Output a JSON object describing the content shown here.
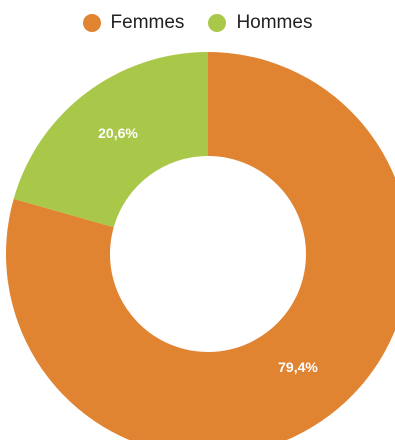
{
  "chart_data": {
    "type": "pie",
    "donut": true,
    "legend_position": "top-center",
    "categories": [
      "Femmes",
      "Hommes"
    ],
    "values": [
      79.4,
      20.6
    ],
    "value_labels": [
      "79,4%",
      "20,6%"
    ],
    "colors": [
      "#e08432",
      "#a9c84a"
    ]
  }
}
